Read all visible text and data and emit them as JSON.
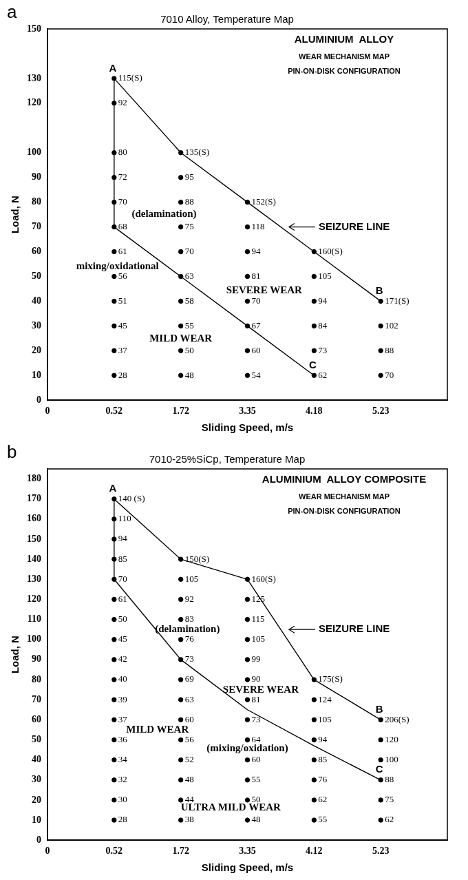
{
  "chart_data": [
    {
      "type": "scatter",
      "title": "7010 Alloy, Temperature Map",
      "xlabel": "Sliding Speed, m/s",
      "ylabel": "Load, N",
      "categories": [
        "0",
        "0.52",
        "1.72",
        "3.35",
        "4.18",
        "5.23",
        null
      ],
      "ylim": [
        0,
        150
      ],
      "yticks": [
        0,
        10,
        20,
        30,
        40,
        50,
        60,
        70,
        80,
        90,
        100,
        120,
        130,
        150
      ],
      "annotations": [
        "a",
        "ALUMINIUM  ALLOY",
        "WEAR MECHANISM MAP",
        "PIN-ON-DISK CONFIGURATION",
        "(delamination)",
        "mixing/oxidational",
        "SEVERE WEAR",
        "MILD WEAR",
        {
          "text": "115(S)",
          "x": "0.52",
          "y": 130
        },
        {
          "text": "92",
          "x": "0.52",
          "y": 120
        },
        {
          "text": "80",
          "x": "0.52",
          "y": 100
        },
        {
          "text": "72",
          "x": "0.52",
          "y": 90
        },
        {
          "text": "70",
          "x": "0.52",
          "y": 80
        },
        {
          "text": "68",
          "x": "0.52",
          "y": 70
        },
        {
          "text": "61",
          "x": "0.52",
          "y": 60
        },
        {
          "text": "56",
          "x": "0.52",
          "y": 50
        },
        {
          "text": "51",
          "x": "0.52",
          "y": 40
        },
        {
          "text": "45",
          "x": "0.52",
          "y": 30
        },
        {
          "text": "37",
          "x": "0.52",
          "y": 20
        },
        {
          "text": "28",
          "x": "0.52",
          "y": 10
        },
        {
          "text": "135(S)",
          "x": "1.72",
          "y": 100
        },
        {
          "text": "95",
          "x": "1.72",
          "y": 90
        },
        {
          "text": "88",
          "x": "1.72",
          "y": 80
        },
        {
          "text": "75",
          "x": "1.72",
          "y": 70
        },
        {
          "text": "70",
          "x": "1.72",
          "y": 60
        },
        {
          "text": "63",
          "x": "1.72",
          "y": 50
        },
        {
          "text": "58",
          "x": "1.72",
          "y": 40
        },
        {
          "text": "55",
          "x": "1.72",
          "y": 30
        },
        {
          "text": "50",
          "x": "1.72",
          "y": 20
        },
        {
          "text": "48",
          "x": "1.72",
          "y": 10
        },
        {
          "text": "152(S)",
          "x": "3.35",
          "y": 80
        },
        {
          "text": "118",
          "x": "3.35",
          "y": 70
        },
        {
          "text": "94",
          "x": "3.35",
          "y": 60
        },
        {
          "text": "81",
          "x": "3.35",
          "y": 50
        },
        {
          "text": "70",
          "x": "3.35",
          "y": 40
        },
        {
          "text": "67",
          "x": "3.35",
          "y": 30
        },
        {
          "text": "60",
          "x": "3.35",
          "y": 20
        },
        {
          "text": "54",
          "x": "3.35",
          "y": 10
        },
        {
          "text": "160(S)",
          "x": "4.18",
          "y": 60
        },
        {
          "text": "105",
          "x": "4.18",
          "y": 50
        },
        {
          "text": "94",
          "x": "4.18",
          "y": 40
        },
        {
          "text": "84",
          "x": "4.18",
          "y": 30
        },
        {
          "text": "73",
          "x": "4.18",
          "y": 20
        },
        {
          "text": "62",
          "x": "4.18",
          "y": 10
        },
        {
          "text": "171(S)",
          "x": "5.23",
          "y": 40
        },
        {
          "text": "102",
          "x": "5.23",
          "y": 30
        },
        {
          "text": "88",
          "x": "5.23",
          "y": 20
        },
        {
          "text": "70",
          "x": "5.23",
          "y": 10
        },
        {
          "text": "A",
          "x": "0.52",
          "y": 130
        },
        {
          "text": "B",
          "x": "5.23",
          "y": 40
        },
        {
          "text": "C",
          "x": "4.18",
          "y": 10
        }
      ],
      "series": [
        {
          "marker": "circle",
          "color": "#000000",
          "x": [
            "0.52",
            "0.52",
            "0.52",
            "0.52",
            "0.52",
            "0.52",
            "0.52",
            "0.52",
            "0.52",
            "0.52",
            "0.52",
            "0.52",
            "1.72",
            "1.72",
            "1.72",
            "1.72",
            "1.72",
            "1.72",
            "1.72",
            "1.72",
            "1.72",
            "1.72",
            "3.35",
            "3.35",
            "3.35",
            "3.35",
            "3.35",
            "3.35",
            "3.35",
            "3.35",
            "4.18",
            "4.18",
            "4.18",
            "4.18",
            "4.18",
            "4.18",
            "5.23",
            "5.23",
            "5.23",
            "5.23"
          ],
          "values": [
            130,
            120,
            100,
            90,
            80,
            70,
            60,
            50,
            40,
            30,
            20,
            10,
            100,
            90,
            80,
            70,
            60,
            50,
            40,
            30,
            20,
            10,
            80,
            70,
            60,
            50,
            40,
            30,
            20,
            10,
            60,
            50,
            40,
            30,
            20,
            10,
            40,
            30,
            20,
            10
          ]
        },
        {
          "type": "line",
          "name": "SEIZURE LINE",
          "color": "#000000",
          "x": [
            "0.52",
            "1.72",
            "3.35",
            "4.18",
            "5.23"
          ],
          "values": [
            130,
            100,
            80,
            60,
            40
          ]
        },
        {
          "type": "line",
          "color": "#000000",
          "x": [
            "0.52",
            "0.52",
            "1.72",
            "3.35",
            "4.18"
          ],
          "values": [
            130,
            70,
            50,
            30,
            10
          ]
        }
      ]
    },
    {
      "type": "scatter",
      "title": "7010-25%SiCp, Temperature Map",
      "xlabel": "Sliding Speed, m/s",
      "ylabel": "Load, N",
      "categories": [
        "0",
        "0.52",
        "1.72",
        "3.35",
        "4.12",
        "5.23",
        null
      ],
      "ylim": [
        0,
        185
      ],
      "yticks": [
        0,
        10,
        20,
        30,
        40,
        50,
        60,
        70,
        80,
        90,
        100,
        110,
        120,
        130,
        140,
        150,
        160,
        170,
        180
      ],
      "annotations": [
        "b",
        "ALUMINIUM  ALLOY COMPOSITE",
        "WEAR MECHANISM MAP",
        "PIN-ON-DISK CONFIGURATION",
        "(delamination)",
        "SEVERE WEAR",
        "MILD WEAR",
        "(mixing/oxidation)",
        "ULTRA MILD WEAR",
        {
          "text": "140 (S)",
          "x": "0.52",
          "y": 170
        },
        {
          "text": "110",
          "x": "0.52",
          "y": 160
        },
        {
          "text": "94",
          "x": "0.52",
          "y": 150
        },
        {
          "text": "85",
          "x": "0.52",
          "y": 140
        },
        {
          "text": "70",
          "x": "0.52",
          "y": 130
        },
        {
          "text": "61",
          "x": "0.52",
          "y": 120
        },
        {
          "text": "50",
          "x": "0.52",
          "y": 110
        },
        {
          "text": "45",
          "x": "0.52",
          "y": 100
        },
        {
          "text": "42",
          "x": "0.52",
          "y": 90
        },
        {
          "text": "40",
          "x": "0.52",
          "y": 80
        },
        {
          "text": "39",
          "x": "0.52",
          "y": 70
        },
        {
          "text": "37",
          "x": "0.52",
          "y": 60
        },
        {
          "text": "36",
          "x": "0.52",
          "y": 50
        },
        {
          "text": "34",
          "x": "0.52",
          "y": 40
        },
        {
          "text": "32",
          "x": "0.52",
          "y": 30
        },
        {
          "text": "30",
          "x": "0.52",
          "y": 20
        },
        {
          "text": "28",
          "x": "0.52",
          "y": 10
        },
        {
          "text": "150(S)",
          "x": "1.72",
          "y": 140
        },
        {
          "text": "105",
          "x": "1.72",
          "y": 130
        },
        {
          "text": "92",
          "x": "1.72",
          "y": 120
        },
        {
          "text": "83",
          "x": "1.72",
          "y": 110
        },
        {
          "text": "76",
          "x": "1.72",
          "y": 100
        },
        {
          "text": "73",
          "x": "1.72",
          "y": 90
        },
        {
          "text": "69",
          "x": "1.72",
          "y": 80
        },
        {
          "text": "63",
          "x": "1.72",
          "y": 70
        },
        {
          "text": "60",
          "x": "1.72",
          "y": 60
        },
        {
          "text": "56",
          "x": "1.72",
          "y": 50
        },
        {
          "text": "52",
          "x": "1.72",
          "y": 40
        },
        {
          "text": "48",
          "x": "1.72",
          "y": 30
        },
        {
          "text": "44",
          "x": "1.72",
          "y": 20
        },
        {
          "text": "38",
          "x": "1.72",
          "y": 10
        },
        {
          "text": "160(S)",
          "x": "3.35",
          "y": 130
        },
        {
          "text": "125",
          "x": "3.35",
          "y": 120
        },
        {
          "text": "115",
          "x": "3.35",
          "y": 110
        },
        {
          "text": "105",
          "x": "3.35",
          "y": 100
        },
        {
          "text": "99",
          "x": "3.35",
          "y": 90
        },
        {
          "text": "90",
          "x": "3.35",
          "y": 80
        },
        {
          "text": "81",
          "x": "3.35",
          "y": 70
        },
        {
          "text": "73",
          "x": "3.35",
          "y": 60
        },
        {
          "text": "64",
          "x": "3.35",
          "y": 50
        },
        {
          "text": "60",
          "x": "3.35",
          "y": 40
        },
        {
          "text": "55",
          "x": "3.35",
          "y": 30
        },
        {
          "text": "50",
          "x": "3.35",
          "y": 20
        },
        {
          "text": "48",
          "x": "3.35",
          "y": 10
        },
        {
          "text": "175(S)",
          "x": "4.12",
          "y": 80
        },
        {
          "text": "124",
          "x": "4.12",
          "y": 70
        },
        {
          "text": "105",
          "x": "4.12",
          "y": 60
        },
        {
          "text": "94",
          "x": "4.12",
          "y": 50
        },
        {
          "text": "85",
          "x": "4.12",
          "y": 40
        },
        {
          "text": "76",
          "x": "4.12",
          "y": 30
        },
        {
          "text": "62",
          "x": "4.12",
          "y": 20
        },
        {
          "text": "55",
          "x": "4.12",
          "y": 10
        },
        {
          "text": "206(S)",
          "x": "5.23",
          "y": 60
        },
        {
          "text": "120",
          "x": "5.23",
          "y": 50
        },
        {
          "text": "100",
          "x": "5.23",
          "y": 40
        },
        {
          "text": "88",
          "x": "5.23",
          "y": 30
        },
        {
          "text": "75",
          "x": "5.23",
          "y": 20
        },
        {
          "text": "62",
          "x": "5.23",
          "y": 10
        },
        {
          "text": "A",
          "x": "0.52",
          "y": 170
        },
        {
          "text": "B",
          "x": "5.23",
          "y": 60
        },
        {
          "text": "C",
          "x": "5.23",
          "y": 30
        }
      ],
      "series": [
        {
          "marker": "circle",
          "color": "#000000",
          "x": [
            "0.52",
            "0.52",
            "0.52",
            "0.52",
            "0.52",
            "0.52",
            "0.52",
            "0.52",
            "0.52",
            "0.52",
            "0.52",
            "0.52",
            "0.52",
            "0.52",
            "0.52",
            "0.52",
            "0.52",
            "1.72",
            "1.72",
            "1.72",
            "1.72",
            "1.72",
            "1.72",
            "1.72",
            "1.72",
            "1.72",
            "1.72",
            "1.72",
            "1.72",
            "1.72",
            "1.72",
            "3.35",
            "3.35",
            "3.35",
            "3.35",
            "3.35",
            "3.35",
            "3.35",
            "3.35",
            "3.35",
            "3.35",
            "3.35",
            "3.35",
            "3.35",
            "4.12",
            "4.12",
            "4.12",
            "4.12",
            "4.12",
            "4.12",
            "4.12",
            "4.12",
            "5.23",
            "5.23",
            "5.23",
            "5.23",
            "5.23",
            "5.23"
          ],
          "values": [
            170,
            160,
            150,
            140,
            130,
            120,
            110,
            100,
            90,
            80,
            70,
            60,
            50,
            40,
            30,
            20,
            10,
            140,
            130,
            120,
            110,
            100,
            90,
            80,
            70,
            60,
            50,
            40,
            30,
            20,
            10,
            130,
            120,
            110,
            100,
            90,
            80,
            70,
            60,
            50,
            40,
            30,
            20,
            10,
            80,
            70,
            60,
            50,
            40,
            30,
            20,
            10,
            60,
            50,
            40,
            30,
            20,
            10
          ]
        },
        {
          "type": "line",
          "name": "SEIZURE LINE",
          "color": "#000000",
          "x": [
            "0.52",
            "1.72",
            "3.35",
            "4.12",
            "5.23"
          ],
          "values": [
            170,
            140,
            130,
            80,
            60
          ]
        },
        {
          "type": "line",
          "color": "#000000",
          "x": [
            "0.52",
            "0.52",
            "1.72",
            "3.35",
            "4.12",
            "5.23"
          ],
          "values": [
            170,
            130,
            90,
            65,
            47,
            30
          ]
        }
      ]
    }
  ]
}
